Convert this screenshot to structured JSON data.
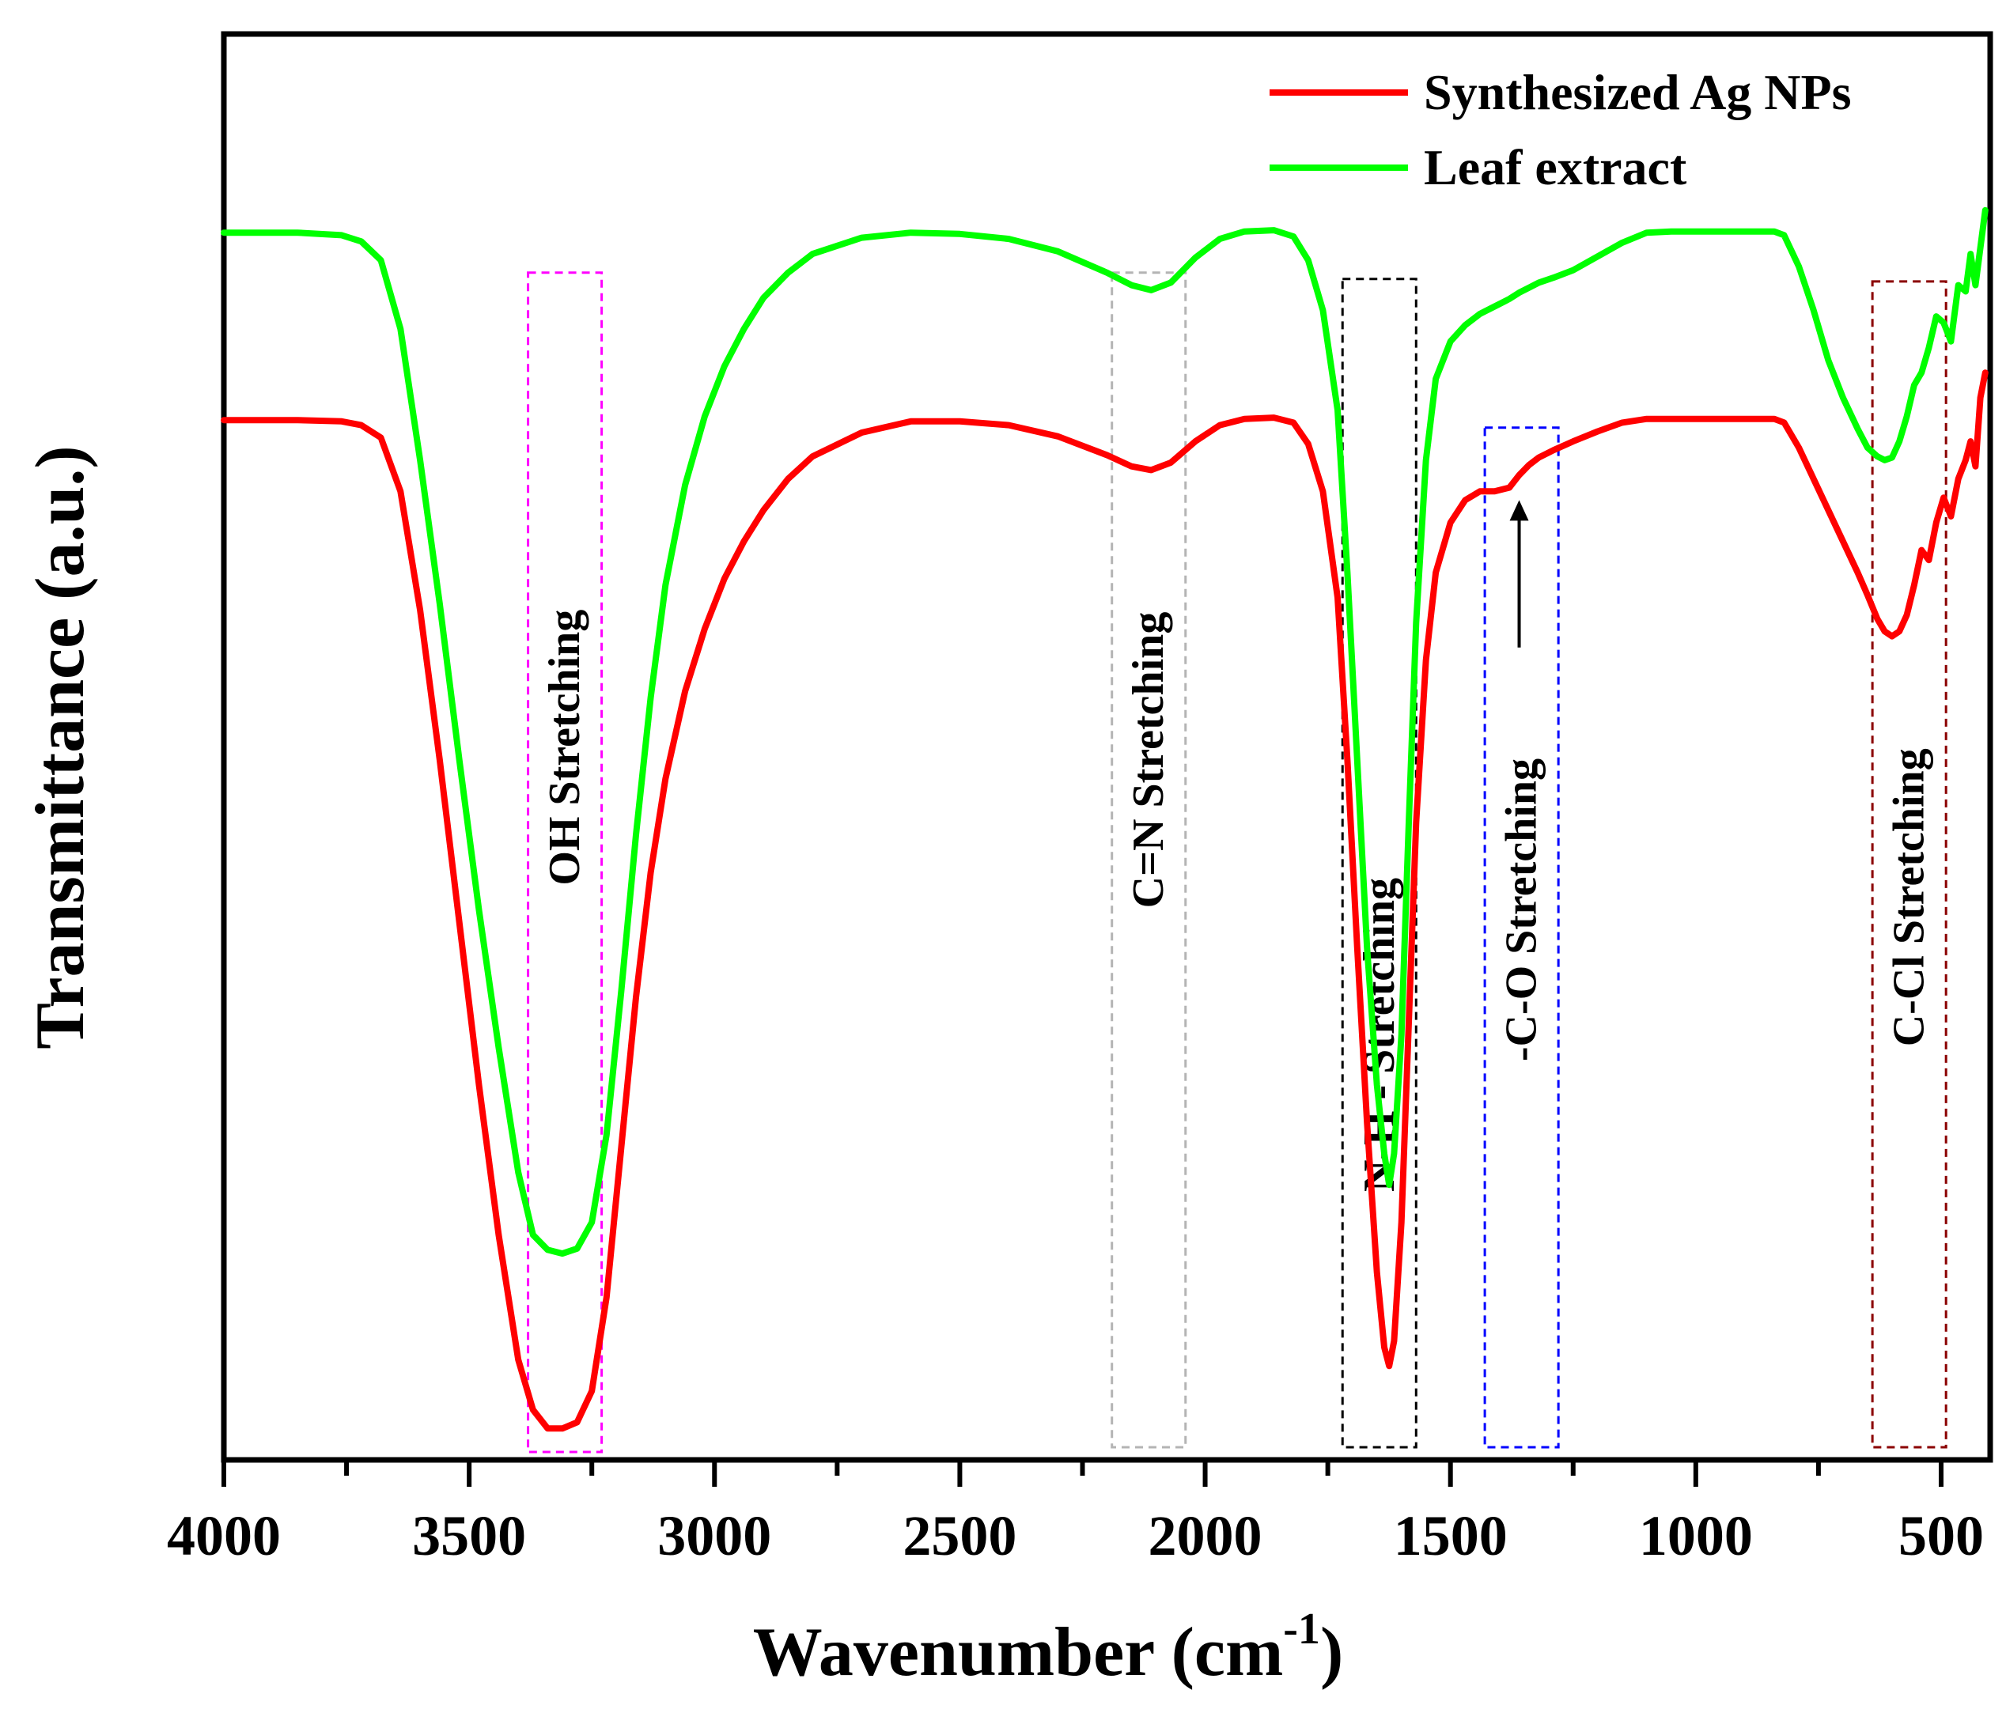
{
  "chart_data": {
    "type": "line",
    "title": "",
    "xlabel": "Wavenumber (cm",
    "xlabel_sup": "-1",
    "xlabel_close": ")",
    "ylabel": "Transmittance (a.u.)",
    "xlim": [
      4000,
      400
    ],
    "ylim": [
      0,
      100
    ],
    "x_ticks": [
      4000,
      3500,
      3000,
      2500,
      2000,
      1500,
      1000,
      500
    ],
    "x_tick_labels": [
      "4000",
      "3500",
      "3000",
      "2500",
      "2000",
      "1500",
      "1000",
      "500"
    ],
    "x_minor_ticks": [
      3750,
      3250,
      2750,
      2250,
      1750,
      1250,
      750
    ],
    "legend": {
      "position": "top-right"
    },
    "series": [
      {
        "name": "Synthesized Ag NPs",
        "color": "#ff0000",
        "x": [
          4000,
          3850,
          3760,
          3720,
          3680,
          3640,
          3600,
          3560,
          3520,
          3480,
          3440,
          3400,
          3370,
          3340,
          3310,
          3280,
          3250,
          3220,
          3190,
          3160,
          3130,
          3100,
          3060,
          3020,
          2980,
          2940,
          2900,
          2850,
          2800,
          2700,
          2600,
          2500,
          2400,
          2300,
          2200,
          2150,
          2110,
          2070,
          2020,
          1970,
          1920,
          1860,
          1820,
          1790,
          1760,
          1730,
          1710,
          1690,
          1670,
          1650,
          1635,
          1625,
          1615,
          1600,
          1585,
          1570,
          1550,
          1530,
          1500,
          1470,
          1440,
          1410,
          1380,
          1360,
          1340,
          1320,
          1290,
          1250,
          1200,
          1150,
          1100,
          1050,
          1000,
          950,
          900,
          860,
          840,
          820,
          790,
          760,
          730,
          700,
          670,
          650,
          630,
          615,
          600,
          585,
          570,
          555,
          540,
          525,
          510,
          495,
          480,
          465,
          450,
          440,
          430,
          420,
          410
        ],
        "y": [
          82.2,
          82.2,
          82.1,
          81.8,
          80.8,
          76.5,
          67.0,
          55.0,
          42.0,
          29.0,
          17.0,
          7.0,
          3.0,
          1.5,
          1.5,
          2.0,
          4.5,
          12.0,
          24.0,
          36.0,
          46.0,
          53.5,
          60.5,
          65.5,
          69.5,
          72.5,
          75.0,
          77.5,
          79.3,
          81.2,
          82.1,
          82.1,
          81.8,
          80.9,
          79.4,
          78.5,
          78.2,
          78.8,
          80.5,
          81.8,
          82.3,
          82.4,
          82.0,
          80.3,
          76.5,
          68.0,
          55.0,
          40.0,
          26.0,
          14.0,
          8.0,
          6.5,
          8.5,
          18.0,
          34.0,
          50.0,
          63.0,
          70.0,
          74.0,
          75.8,
          76.5,
          76.5,
          76.8,
          77.8,
          78.6,
          79.2,
          79.8,
          80.5,
          81.3,
          82.0,
          82.3,
          82.3,
          82.3,
          82.3,
          82.3,
          82.3,
          82.3,
          82.0,
          80.0,
          77.5,
          75.0,
          72.5,
          70.0,
          68.2,
          66.3,
          65.3,
          64.9,
          65.3,
          66.6,
          69.0,
          71.8,
          71.0,
          74.0,
          76.0,
          74.5,
          77.5,
          79.0,
          80.5,
          78.5,
          84.0,
          86.0
        ]
      },
      {
        "name": "Leaf extract",
        "color": "#00ff00",
        "x": [
          4000,
          3850,
          3760,
          3720,
          3680,
          3640,
          3600,
          3560,
          3520,
          3480,
          3440,
          3400,
          3370,
          3340,
          3310,
          3280,
          3250,
          3220,
          3190,
          3160,
          3130,
          3100,
          3060,
          3020,
          2980,
          2940,
          2900,
          2850,
          2800,
          2700,
          2600,
          2500,
          2400,
          2300,
          2200,
          2150,
          2110,
          2070,
          2020,
          1970,
          1920,
          1860,
          1820,
          1790,
          1760,
          1730,
          1710,
          1690,
          1670,
          1650,
          1635,
          1625,
          1615,
          1600,
          1585,
          1570,
          1550,
          1530,
          1500,
          1470,
          1440,
          1410,
          1380,
          1360,
          1340,
          1320,
          1290,
          1250,
          1200,
          1150,
          1100,
          1050,
          1000,
          950,
          900,
          860,
          840,
          820,
          790,
          760,
          730,
          700,
          670,
          650,
          630,
          615,
          600,
          585,
          570,
          555,
          540,
          525,
          510,
          495,
          480,
          465,
          450,
          440,
          430,
          420,
          410
        ],
        "y": [
          97.2,
          97.2,
          97.0,
          96.5,
          95.0,
          89.5,
          79.0,
          67.5,
          55.0,
          43.0,
          32.0,
          22.0,
          17.0,
          15.8,
          15.5,
          15.9,
          18.0,
          25.0,
          36.5,
          49.0,
          60.0,
          69.0,
          77.0,
          82.5,
          86.5,
          89.5,
          92.0,
          94.0,
          95.5,
          96.8,
          97.2,
          97.1,
          96.7,
          95.7,
          94.0,
          93.0,
          92.6,
          93.2,
          95.2,
          96.7,
          97.3,
          97.4,
          96.9,
          95.0,
          91.0,
          83.0,
          70.0,
          55.0,
          40.0,
          29.0,
          23.5,
          21.0,
          23.5,
          33.0,
          50.0,
          66.0,
          79.0,
          85.5,
          88.5,
          89.8,
          90.7,
          91.3,
          91.9,
          92.4,
          92.8,
          93.2,
          93.6,
          94.2,
          95.3,
          96.4,
          97.2,
          97.3,
          97.3,
          97.3,
          97.3,
          97.3,
          97.3,
          97.0,
          94.5,
          91.0,
          87.0,
          84.0,
          81.5,
          80.0,
          79.3,
          79.0,
          79.2,
          80.5,
          82.5,
          85.0,
          86.0,
          88.0,
          90.5,
          90.0,
          88.5,
          93.0,
          92.5,
          95.5,
          93.0,
          96.0,
          99.0
        ]
      }
    ],
    "bands": [
      {
        "name": "OH",
        "label": "OH   Stretching",
        "x_from": 3380,
        "x_to": 3230,
        "y_from": -0.5,
        "y_to": 94.0,
        "color": "#ff00ff",
        "label_y": 56
      },
      {
        "name": "C=N",
        "label": "C=N   Stretching",
        "x_from": 2190,
        "x_to": 2040,
        "y_from": 0,
        "y_to": 94.0,
        "color": "#b4b4b4",
        "label_y": 55
      },
      {
        "name": "N-H",
        "label": "N-H - Stretching",
        "x_from": 1720,
        "x_to": 1570,
        "y_from": 0,
        "y_to": 93.5,
        "color": "#000000",
        "label_y": 33
      },
      {
        "name": "C-O",
        "label": "-C-O  Stretching",
        "x_from": 1430,
        "x_to": 1280,
        "y_from": 0,
        "y_to": 81.6,
        "color": "#0000ff",
        "label_y": 43
      },
      {
        "name": "C-Cl",
        "label": "C-Cl  Stretching",
        "x_from": 640,
        "x_to": 490,
        "y_from": 0,
        "y_to": 93.3,
        "color": "#8b0000",
        "label_y": 44
      }
    ],
    "arrow": {
      "x": 1360,
      "y_from": 64,
      "y_to": 75.8
    }
  }
}
